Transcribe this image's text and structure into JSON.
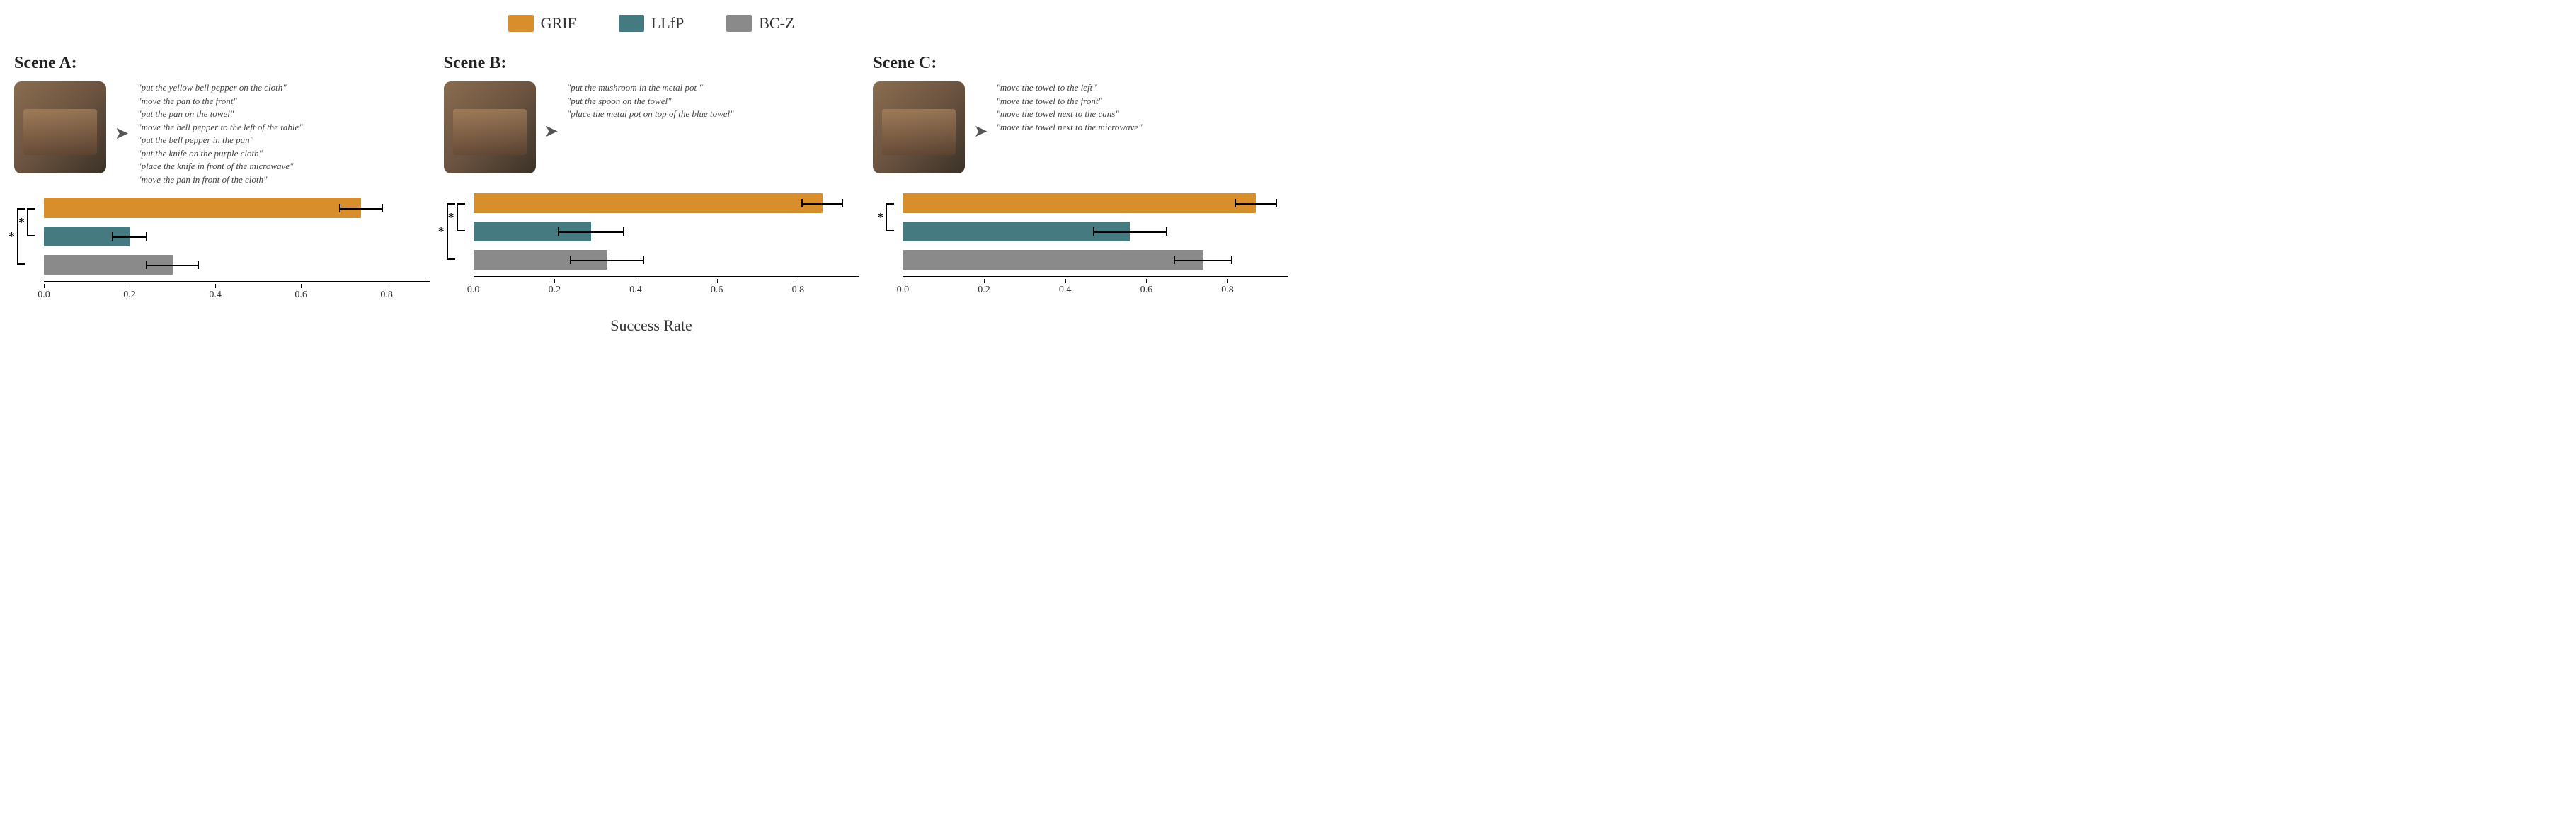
{
  "legend": {
    "items": [
      {
        "label": "GRIF",
        "color": "#d98e2c"
      },
      {
        "label": "LLfP",
        "color": "#457a80"
      },
      {
        "label": "BC-Z",
        "color": "#8a8a8a"
      }
    ]
  },
  "xaxis_title": "Success Rate",
  "scenes": [
    {
      "title": "Scene A:",
      "instructions": [
        "\"put the yellow bell pepper on the cloth\"",
        "\"move the pan to the front\"",
        "\"put the pan on the towel\"",
        "\"move the bell pepper to the left of the table\"",
        "\"put the bell pepper in the pan\"",
        "\"put the knife on the purple cloth\"",
        "\"place the knife in front of the microwave\"",
        "\"move the pan in front of the cloth\""
      ],
      "chart": {
        "type": "bar",
        "xmax": 0.9,
        "xticks": [
          0.0,
          0.2,
          0.4,
          0.6,
          0.8
        ],
        "bars": [
          {
            "series": "GRIF",
            "value": 0.74,
            "err": 0.05,
            "color": "#d98e2c"
          },
          {
            "series": "LLfP",
            "value": 0.2,
            "err": 0.04,
            "color": "#457a80"
          },
          {
            "series": "BC-Z",
            "value": 0.3,
            "err": 0.06,
            "color": "#8a8a8a"
          }
        ],
        "sig_brackets": [
          {
            "from": 0,
            "to": 2,
            "depth": 0,
            "star": "*"
          },
          {
            "from": 0,
            "to": 1,
            "depth": 1,
            "star": "*"
          }
        ]
      }
    },
    {
      "title": "Scene B:",
      "instructions": [
        "\"put the mushroom in the metal pot \"",
        "\"put the spoon on the towel\"",
        "\"place the metal pot on top of the blue towel\""
      ],
      "chart": {
        "type": "bar",
        "xmax": 0.95,
        "xticks": [
          0.0,
          0.2,
          0.4,
          0.6,
          0.8
        ],
        "bars": [
          {
            "series": "GRIF",
            "value": 0.86,
            "err": 0.05,
            "color": "#d98e2c"
          },
          {
            "series": "LLfP",
            "value": 0.29,
            "err": 0.08,
            "color": "#457a80"
          },
          {
            "series": "BC-Z",
            "value": 0.33,
            "err": 0.09,
            "color": "#8a8a8a"
          }
        ],
        "sig_brackets": [
          {
            "from": 0,
            "to": 2,
            "depth": 0,
            "star": "*"
          },
          {
            "from": 0,
            "to": 1,
            "depth": 1,
            "star": "*"
          }
        ]
      }
    },
    {
      "title": "Scene C:",
      "instructions": [
        "\"move the towel to the left\"",
        "\"move the towel to the front\"",
        "\"move the towel next to the cans\"",
        "\"move the towel next to the microwave\""
      ],
      "chart": {
        "type": "bar",
        "xmax": 0.95,
        "xticks": [
          0.0,
          0.2,
          0.4,
          0.6,
          0.8
        ],
        "bars": [
          {
            "series": "GRIF",
            "value": 0.87,
            "err": 0.05,
            "color": "#d98e2c"
          },
          {
            "series": "LLfP",
            "value": 0.56,
            "err": 0.09,
            "color": "#457a80"
          },
          {
            "series": "BC-Z",
            "value": 0.74,
            "err": 0.07,
            "color": "#8a8a8a"
          }
        ],
        "sig_brackets": [
          {
            "from": 0,
            "to": 1,
            "depth": 1,
            "star": "*"
          }
        ]
      }
    }
  ]
}
